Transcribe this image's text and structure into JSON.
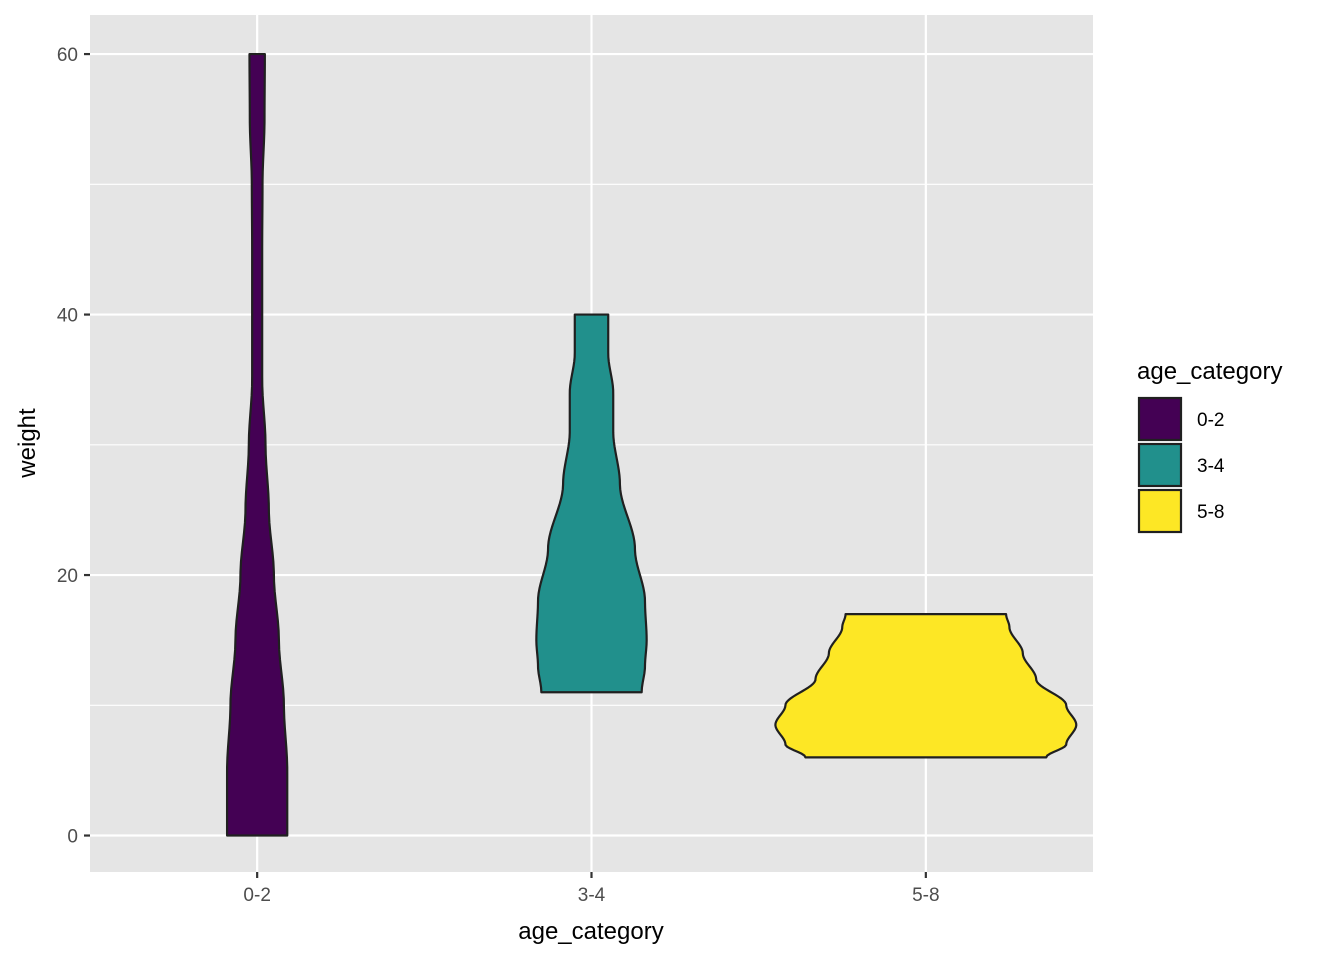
{
  "chart_data": {
    "type": "violin",
    "xlabel": "age_category",
    "ylabel": "weight",
    "categories": [
      "0-2",
      "3-4",
      "5-8"
    ],
    "ylim": [
      -2.8,
      63.0
    ],
    "yticks": [
      0,
      20,
      40,
      60
    ],
    "grid": true,
    "legend": {
      "title": "age_category",
      "placement": "right",
      "entries": [
        "0-2",
        "3-4",
        "5-8"
      ]
    },
    "series": [
      {
        "category": "0-2",
        "color": "#440154",
        "min": 0,
        "max": 60,
        "profile": [
          [
            0,
            0.09
          ],
          [
            5,
            0.09
          ],
          [
            10,
            0.08
          ],
          [
            15,
            0.065
          ],
          [
            20,
            0.05
          ],
          [
            25,
            0.035
          ],
          [
            30,
            0.025
          ],
          [
            35,
            0.015
          ],
          [
            40,
            0.015
          ],
          [
            45,
            0.015
          ],
          [
            50,
            0.016
          ],
          [
            55,
            0.022
          ],
          [
            60,
            0.023
          ]
        ]
      },
      {
        "category": "3-4",
        "color": "#21908C",
        "min": 11,
        "max": 40,
        "profile": [
          [
            11,
            0.15
          ],
          [
            13,
            0.16
          ],
          [
            15,
            0.165
          ],
          [
            18,
            0.16
          ],
          [
            22,
            0.13
          ],
          [
            27,
            0.085
          ],
          [
            31,
            0.065
          ],
          [
            34,
            0.065
          ],
          [
            37,
            0.05
          ],
          [
            40,
            0.05
          ]
        ]
      },
      {
        "category": "5-8",
        "color": "#FDE725",
        "min": 6,
        "max": 17,
        "profile": [
          [
            6,
            0.36
          ],
          [
            7,
            0.42
          ],
          [
            8.5,
            0.45
          ],
          [
            10,
            0.42
          ],
          [
            12,
            0.33
          ],
          [
            14,
            0.29
          ],
          [
            16,
            0.25
          ],
          [
            17,
            0.24
          ]
        ]
      }
    ]
  }
}
